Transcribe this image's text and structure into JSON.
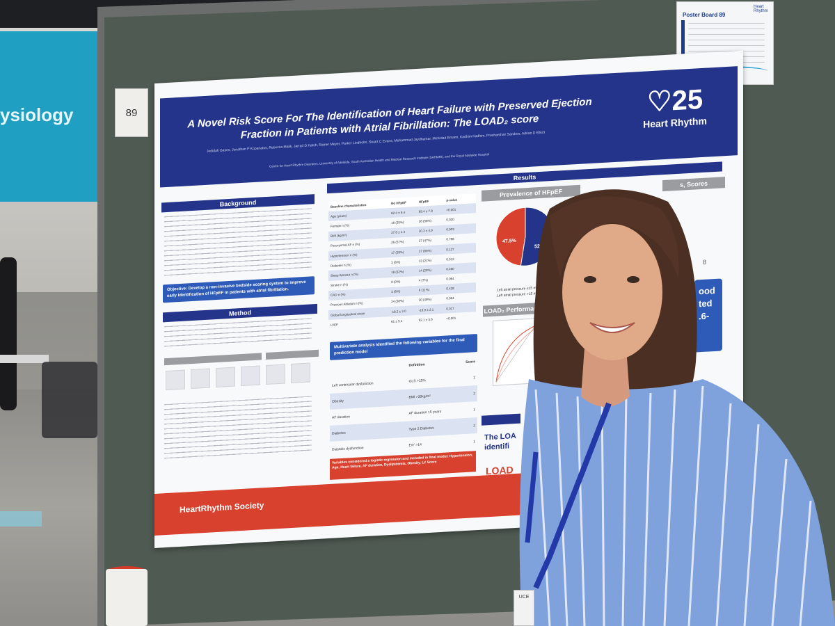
{
  "scene": {
    "banner_text": "ysiology",
    "board_number": "89",
    "poster_board_label": "Poster Board 89",
    "label_logo": "Heart Rhythm",
    "badge_text": "UCE"
  },
  "poster": {
    "title": "A Novel Risk Score For The Identification of Heart Failure with Preserved Ejection Fraction in Patients with Atrial Fibrillation: The LOAD₂ score",
    "authors": "Jedidah Gases, Jonathan P Kopanatos, Rebecca Malik, Jarrad D Hatch, Rainer Meyer, Parker Lindholm, Stuart C Evans, Mohammad Jaydhamar, Mehrdad Emami, Kadhim Kadhim, Prashanthan Sanders, Adrian D Elliott",
    "affiliation": "Centre for Heart Rhythm Disorders, University of Adelaide, South Australian Health and Medical Research Institute (SAHMRI), and the Royal Adelaide Hospital",
    "logo_number": "25",
    "logo_name": "Heart Rhythm",
    "sections": {
      "background": "Background",
      "objective": "Objective: Develop a non-invasive bedside scoring system to improve early identification of HFpEF in patients with atrial fibrillation.",
      "method": "Method",
      "results": "Results",
      "prevalence": "Prevalence of HFpEF",
      "scores_partial": "s, Scores",
      "load_performance": "LOAD₂ Performance",
      "multivariate": "Multivariate analysis identified the following variables for the final prediction model",
      "red_note": "Variables considered a logistic regression and included in final model: Hypertension, Age, Heart failure, AF duration, Dyslipidemia, Obesity, LV Score",
      "society": "HeartRhythm Society",
      "load_conclusion_1": "The LOA",
      "load_conclusion_2": "identifi",
      "load_footer": "LOAD",
      "blue_block": "ood\nted\n.6-"
    },
    "table1": {
      "headers": [
        "Baseline characteristics",
        "No HFpEF",
        "HFpEF",
        "p-value"
      ],
      "rows": [
        [
          "Age (years)",
          "62.4 ± 9.4",
          "69.4 ± 7.8",
          "<0.001"
        ],
        [
          "Female n (%)",
          "16 (35%)",
          "26 (56%)",
          "0.020"
        ],
        [
          "BMI (kg/m²)",
          "27.6 ± 4.4",
          "30.3 ± 4.9",
          "0.003"
        ],
        [
          "Paroxysmal AF n (%)",
          "26 (57%)",
          "27 (47%)",
          "0.788"
        ],
        [
          "Hypertension n (%)",
          "17 (39%)",
          "37 (65%)",
          "0.127"
        ],
        [
          "Diabetes n (%)",
          "3 (6%)",
          "13 (21%)",
          "0.012"
        ],
        [
          "Sleep Apnoea n (%)",
          "18 (32%)",
          "14 (25%)",
          "0.460"
        ],
        [
          "Stroke n (%)",
          "0 (0%)",
          "4 (7%)",
          "0.064"
        ],
        [
          "CAD n (%)",
          "3 (6%)",
          "6 (11%)",
          "0.428"
        ],
        [
          "Previous Ablation n (%)",
          "24 (38%)",
          "30 (49%)",
          "0.064"
        ],
        [
          "Global longitudinal strain",
          "-18.2 ± 2.0",
          "-16.9 ± 2.1",
          "0.017"
        ],
        [
          "LVEF",
          "61 ± 5.4",
          "62.1 ± 5.6",
          "<0.001"
        ]
      ]
    },
    "table2": {
      "headers": [
        "",
        "Definition",
        "Score"
      ],
      "rows": [
        [
          "Left ventricular dysfunction",
          "GLS >15%",
          "1"
        ],
        [
          "Obesity",
          "BMI >30kg/m²",
          "2"
        ],
        [
          "AF duration",
          "AF duration >5 years",
          "1"
        ],
        [
          "Diabetes",
          "Type 2 Diabetes",
          "2"
        ],
        [
          "Diastolic dysfunction",
          "E/e' >14",
          "1"
        ]
      ]
    },
    "pie": {
      "left_value": "47.5%",
      "right_value": "52.",
      "legend_1": "Left atrial pressure ≤15 mmHg",
      "legend_2": "Left atrial pressure >15 mmHg",
      "colors": [
        "#d8412e",
        "#23348a"
      ]
    },
    "side_number": "8"
  },
  "chart_data": {
    "type": "pie",
    "title": "Prevalence of HFpEF",
    "slices": [
      {
        "name": "Left atrial pressure >15 mmHg",
        "value": 47.5
      },
      {
        "name": "Left atrial pressure ≤15 mmHg",
        "value": 52.5
      }
    ]
  }
}
